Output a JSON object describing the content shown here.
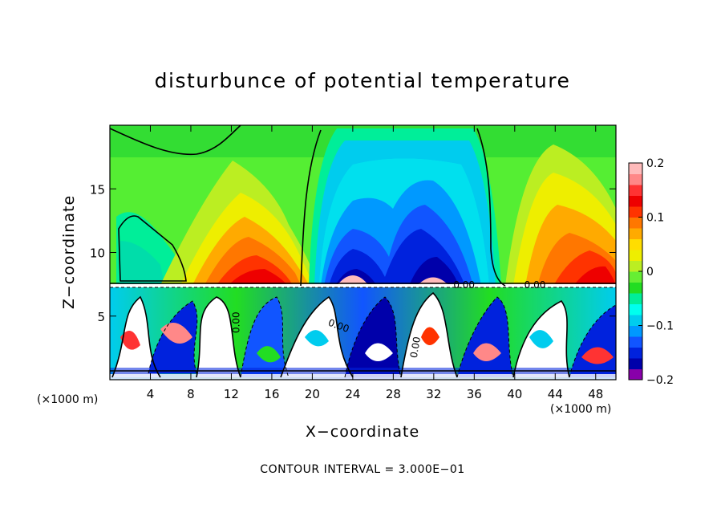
{
  "chart_data": {
    "type": "heatmap",
    "title": "disturbunce of potential temperature",
    "xlabel": "X−coordinate",
    "ylabel": "Z−coordinate",
    "x_unit": "(×1000 m)",
    "y_unit": "(×1000 m)",
    "xlim": [
      0,
      50
    ],
    "ylim": [
      0,
      20
    ],
    "x_ticks": [
      4,
      8,
      12,
      16,
      20,
      24,
      28,
      32,
      36,
      40,
      44,
      48
    ],
    "y_ticks": [
      5,
      10,
      15
    ],
    "colorbar": {
      "ticks": [
        0.2,
        0.1,
        0,
        -0.1,
        -0.2
      ],
      "tick_labels": [
        "0.2",
        "0.1",
        "0",
        "−0.1",
        "−0.2"
      ],
      "range": [
        -0.2,
        0.2
      ],
      "colors": [
        "#8800aa",
        "#0000aa",
        "#0022dd",
        "#1155ff",
        "#0099ff",
        "#00ccee",
        "#00ffee",
        "#00ee99",
        "#22dd22",
        "#66ee33",
        "#bbee22",
        "#eeee00",
        "#ffdd00",
        "#ffaa00",
        "#ff7700",
        "#ff3300",
        "#ee0000",
        "#ff3333",
        "#ff8888",
        "#ffbbbb"
      ]
    },
    "contour_labels": [
      "0.00",
      "0.00",
      "0.00",
      "0.00",
      "0.00"
    ],
    "contour_interval": "CONTOUR INTERVAL = 3.000E−01"
  }
}
